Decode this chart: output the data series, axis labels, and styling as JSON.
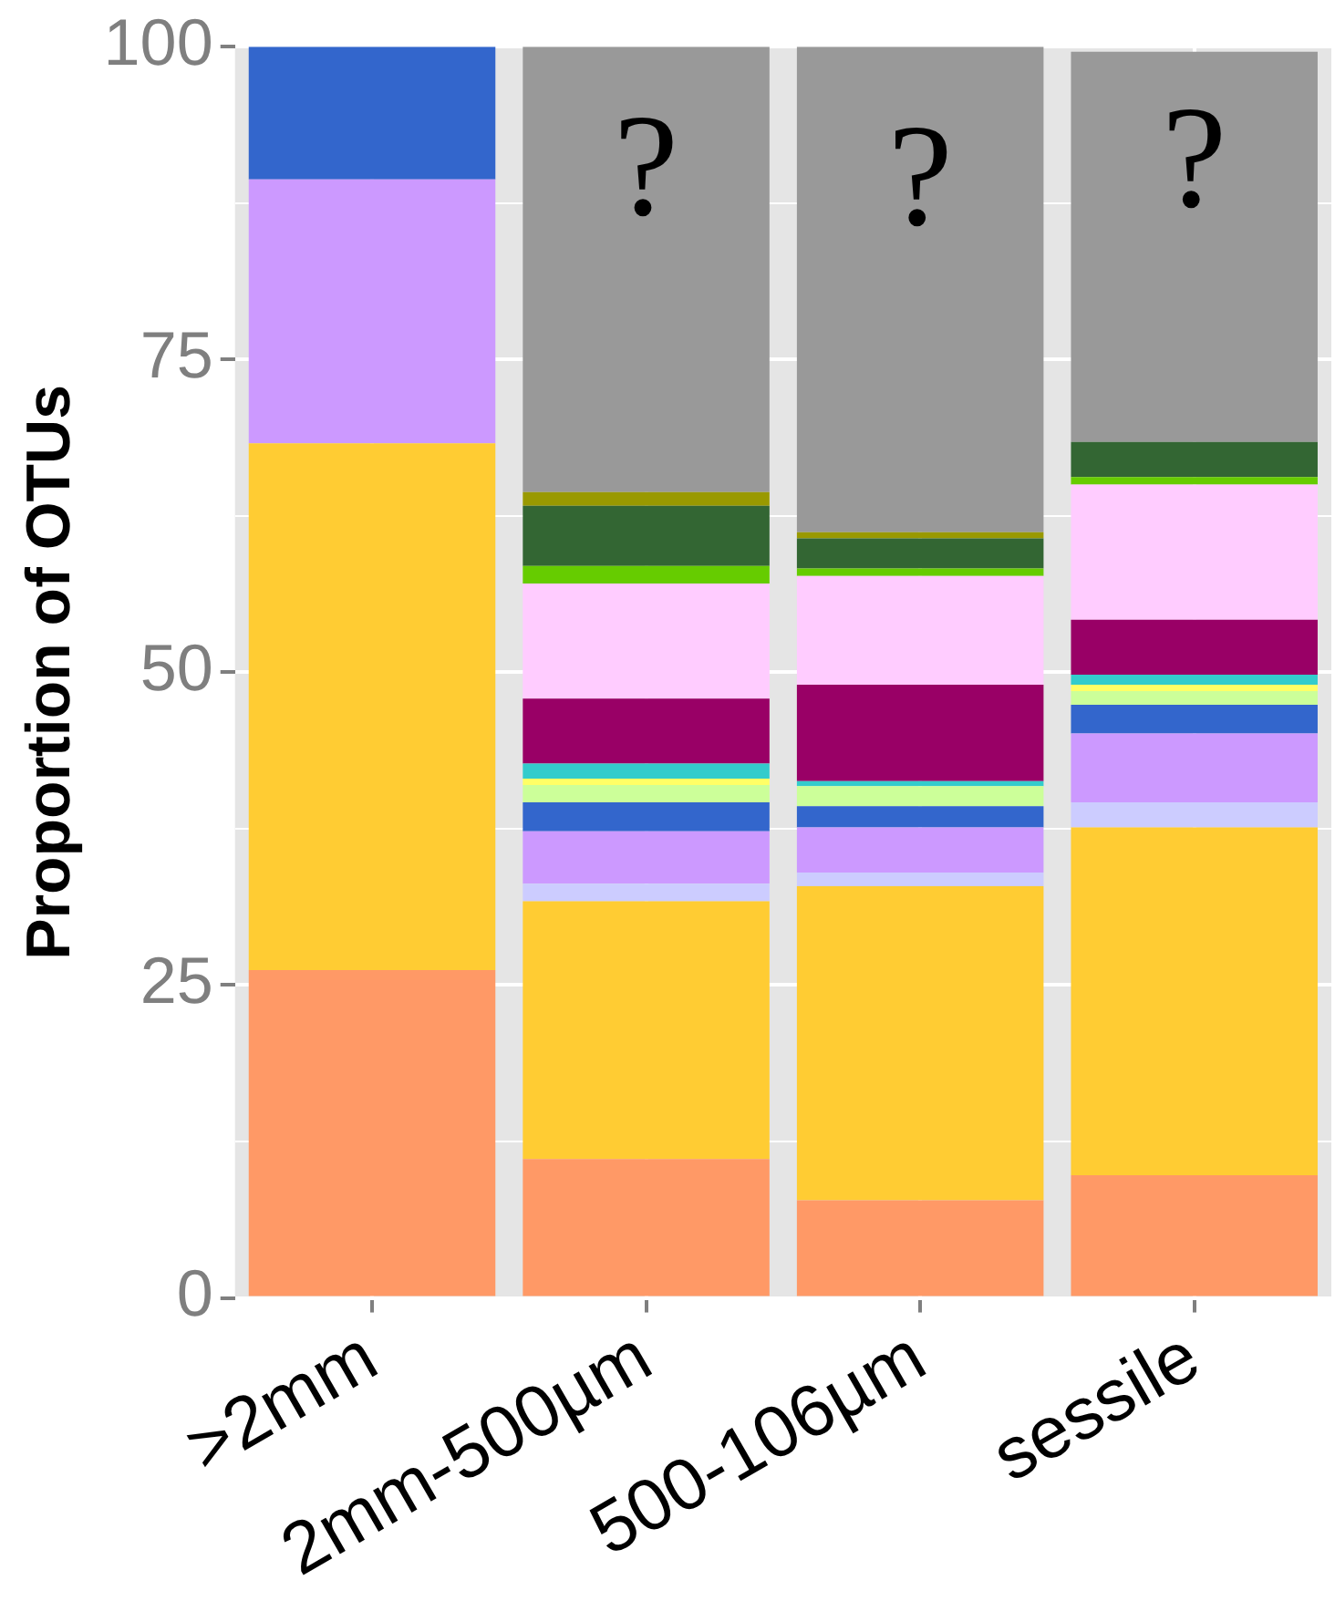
{
  "chart_data": {
    "type": "bar",
    "stacked": true,
    "ylabel": "Proportion of OTUs",
    "categories": [
      ">2mm",
      "2mm-500µm",
      "500-106µm",
      "sessile"
    ],
    "ylim": [
      0,
      100
    ],
    "yticks": [
      0,
      {
        "value": 12.5,
        "label": null
      },
      25,
      {
        "value": 37.5,
        "label": null
      },
      50,
      {
        "value": 62.5,
        "label": null
      },
      75,
      {
        "value": 87.5,
        "label": null
      },
      100
    ],
    "grid": true,
    "legend": false,
    "series": [
      {
        "color": "#ff9966",
        "values": [
          26.2,
          11.1,
          7.8,
          9.8
        ]
      },
      {
        "color": "#ffcc33",
        "values": [
          42.1,
          20.6,
          25.1,
          27.8
        ]
      },
      {
        "color": "#ccccff",
        "values": [
          0,
          1.4,
          1.1,
          2.0
        ]
      },
      {
        "color": "#cc99ff",
        "values": [
          21.1,
          4.2,
          3.6,
          5.5
        ]
      },
      {
        "color": "#3366cc",
        "values": [
          10.6,
          2.3,
          1.7,
          2.3
        ]
      },
      {
        "color": "#ccff99",
        "values": [
          0,
          1.4,
          1.6,
          1.1
        ]
      },
      {
        "color": "#ffff66",
        "values": [
          0,
          0.5,
          0,
          0.5
        ]
      },
      {
        "color": "#33cccc",
        "values": [
          0,
          1.2,
          0.4,
          0.8
        ]
      },
      {
        "color": "#990066",
        "values": [
          0,
          5.2,
          7.7,
          4.4
        ]
      },
      {
        "color": "#ffccff",
        "values": [
          0,
          9.2,
          8.7,
          10.8
        ]
      },
      {
        "color": "#66cc00",
        "values": [
          0,
          1.4,
          0.6,
          0.6
        ]
      },
      {
        "color": "#336633",
        "values": [
          0,
          4.8,
          2.4,
          2.8
        ]
      },
      {
        "color": "#999900",
        "values": [
          0,
          1.1,
          0.5,
          0
        ]
      },
      {
        "color": "#999999",
        "values": [
          0,
          35.6,
          38.8,
          31.2
        ]
      }
    ],
    "annotations": [
      "?",
      "?",
      "?"
    ]
  }
}
